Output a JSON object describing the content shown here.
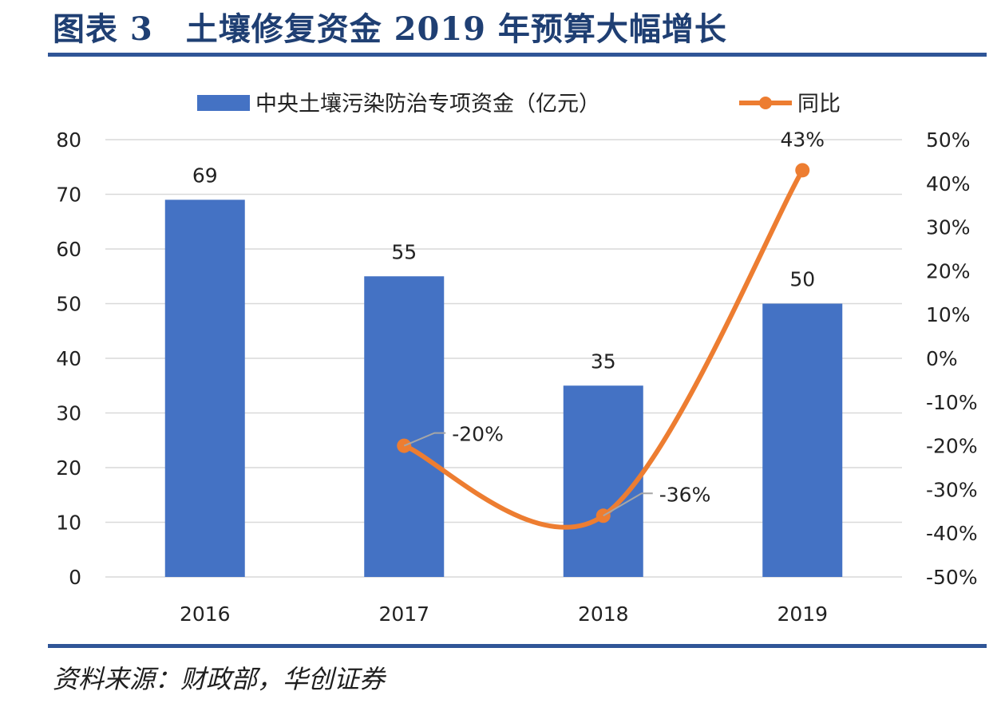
{
  "title": "图表 3　土壤修复资金 2019 年预算大幅增长",
  "source": "资料来源：财政部，华创证券",
  "colors": {
    "bar": "#4472c4",
    "line": "#ed7d31",
    "grid": "#d9d9d9",
    "rule": "#2f5597",
    "title": "#1f3f73"
  },
  "chart_data": {
    "type": "bar",
    "categories": [
      "2016",
      "2017",
      "2018",
      "2019"
    ],
    "series": [
      {
        "name": "中央土壤污染防治专项资金（亿元）",
        "type": "bar",
        "axis": "left",
        "values": [
          69,
          55,
          35,
          50
        ],
        "labels": [
          "69",
          "55",
          "35",
          "50"
        ]
      },
      {
        "name": "同比",
        "type": "line",
        "axis": "right",
        "values": [
          null,
          -20,
          -36,
          43
        ],
        "labels": [
          "",
          "-20%",
          "-36%",
          "43%"
        ]
      }
    ],
    "y_left": {
      "min": 0,
      "max": 80,
      "step": 10,
      "tick_labels": [
        "0",
        "10",
        "20",
        "30",
        "40",
        "50",
        "60",
        "70",
        "80"
      ]
    },
    "y_right": {
      "min": -50,
      "max": 50,
      "step": 10,
      "tick_labels": [
        "-50%",
        "-40%",
        "-30%",
        "-20%",
        "-10%",
        "0%",
        "10%",
        "20%",
        "30%",
        "40%",
        "50%"
      ]
    },
    "grid": true,
    "legend": "top"
  }
}
